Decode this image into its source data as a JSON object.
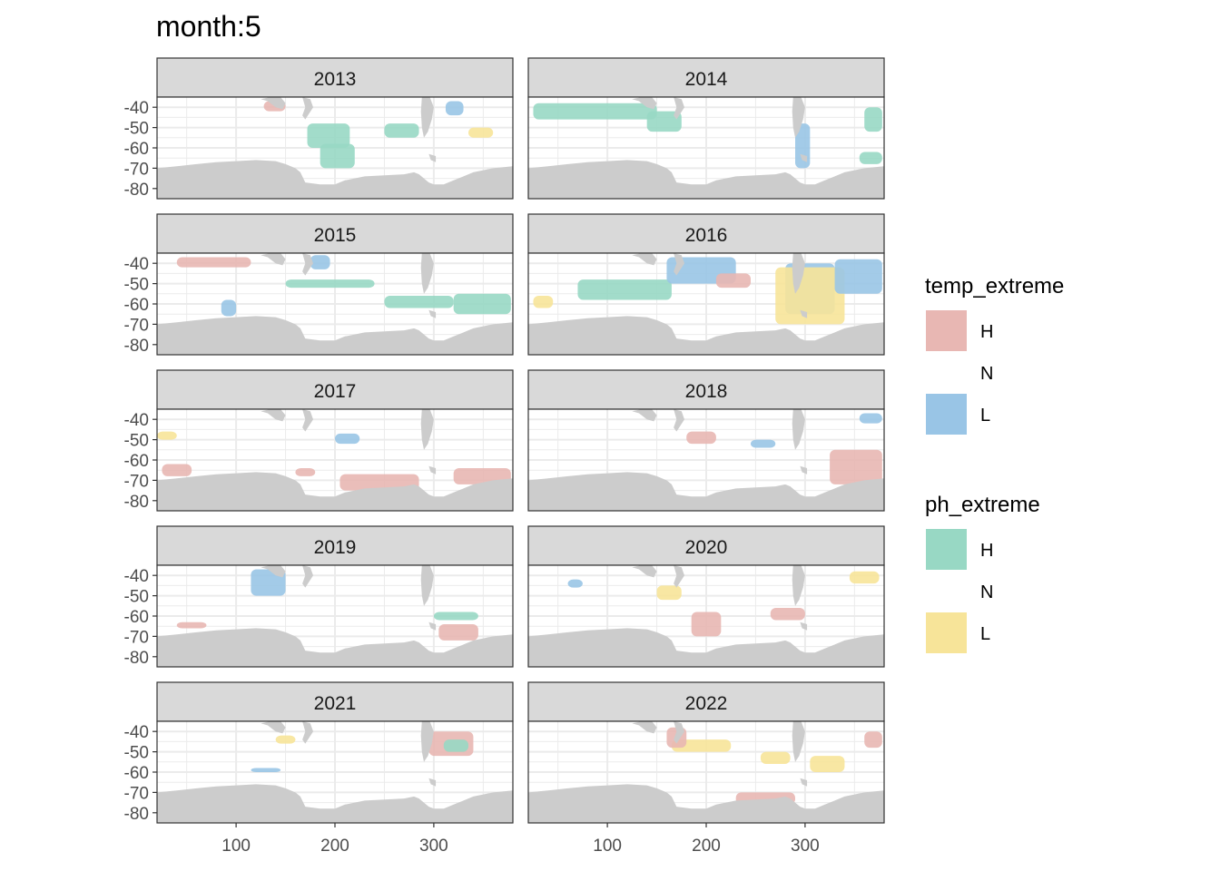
{
  "plot_title": "month:5",
  "chart_data": {
    "type": "heatmap",
    "title": "month:5",
    "facet_variable": "year",
    "facets": [
      "2013",
      "2014",
      "2015",
      "2016",
      "2017",
      "2018",
      "2019",
      "2020",
      "2021",
      "2022"
    ],
    "facet_layout": {
      "ncol": 2,
      "nrow": 5
    },
    "xlim": [
      20,
      380
    ],
    "ylim": [
      -85,
      -35
    ],
    "x_ticks": [
      100,
      200,
      300
    ],
    "x_tick_labels": [
      "100",
      "200",
      "300"
    ],
    "y_ticks": [
      -40,
      -50,
      -60,
      -70,
      -80
    ],
    "y_tick_labels": [
      "-40",
      "-50",
      "-60",
      "-70",
      "-80"
    ],
    "xlabel": "",
    "ylabel": "",
    "grid": true,
    "legend_position": "right",
    "legends": [
      {
        "title": "temp_extreme",
        "entries": [
          {
            "label": "H",
            "color": "#e8b7b3"
          },
          {
            "label": "N",
            "color": ""
          },
          {
            "label": "L",
            "color": "#99c5e6"
          }
        ]
      },
      {
        "title": "ph_extreme",
        "entries": [
          {
            "label": "H",
            "color": "#98d8c4"
          },
          {
            "label": "N",
            "color": ""
          },
          {
            "label": "L",
            "color": "#f7e499"
          }
        ]
      }
    ],
    "land_color": "#cccccc",
    "strip_fill": "#d9d9d9",
    "regions": {
      "2013": [
        {
          "var": "ph",
          "level": "H",
          "lon": [
            172,
            215
          ],
          "lat": [
            -60,
            -48
          ]
        },
        {
          "var": "ph",
          "level": "H",
          "lon": [
            185,
            220
          ],
          "lat": [
            -70,
            -58
          ]
        },
        {
          "var": "ph",
          "level": "L",
          "lon": [
            335,
            360
          ],
          "lat": [
            -55,
            -50
          ]
        },
        {
          "var": "temp",
          "level": "L",
          "lon": [
            312,
            330
          ],
          "lat": [
            -44,
            -37
          ]
        },
        {
          "var": "temp",
          "level": "H",
          "lon": [
            128,
            150
          ],
          "lat": [
            -42,
            -37
          ]
        },
        {
          "var": "ph",
          "level": "H",
          "lon": [
            250,
            285
          ],
          "lat": [
            -55,
            -48
          ]
        }
      ],
      "2014": [
        {
          "var": "ph",
          "level": "H",
          "lon": [
            25,
            150
          ],
          "lat": [
            -46,
            -38
          ]
        },
        {
          "var": "ph",
          "level": "H",
          "lon": [
            140,
            175
          ],
          "lat": [
            -52,
            -42
          ]
        },
        {
          "var": "temp",
          "level": "L",
          "lon": [
            290,
            305
          ],
          "lat": [
            -70,
            -48
          ]
        },
        {
          "var": "ph",
          "level": "H",
          "lon": [
            355,
            378
          ],
          "lat": [
            -68,
            -62
          ]
        },
        {
          "var": "ph",
          "level": "H",
          "lon": [
            360,
            378
          ],
          "lat": [
            -52,
            -40
          ]
        }
      ],
      "2015": [
        {
          "var": "temp",
          "level": "L",
          "lon": [
            175,
            195
          ],
          "lat": [
            -43,
            -36
          ]
        },
        {
          "var": "ph",
          "level": "H",
          "lon": [
            150,
            240
          ],
          "lat": [
            -52,
            -48
          ]
        },
        {
          "var": "ph",
          "level": "H",
          "lon": [
            320,
            378
          ],
          "lat": [
            -65,
            -55
          ]
        },
        {
          "var": "temp",
          "level": "L",
          "lon": [
            85,
            100
          ],
          "lat": [
            -66,
            -58
          ]
        },
        {
          "var": "temp",
          "level": "H",
          "lon": [
            40,
            115
          ],
          "lat": [
            -42,
            -37
          ]
        },
        {
          "var": "ph",
          "level": "H",
          "lon": [
            250,
            320
          ],
          "lat": [
            -62,
            -56
          ]
        }
      ],
      "2016": [
        {
          "var": "ph",
          "level": "H",
          "lon": [
            70,
            165
          ],
          "lat": [
            -58,
            -48
          ]
        },
        {
          "var": "temp",
          "level": "L",
          "lon": [
            160,
            230
          ],
          "lat": [
            -50,
            -37
          ]
        },
        {
          "var": "temp",
          "level": "L",
          "lon": [
            280,
            330
          ],
          "lat": [
            -65,
            -40
          ]
        },
        {
          "var": "ph",
          "level": "L",
          "lon": [
            270,
            340
          ],
          "lat": [
            -70,
            -42
          ]
        },
        {
          "var": "temp",
          "level": "H",
          "lon": [
            210,
            245
          ],
          "lat": [
            -52,
            -45
          ]
        },
        {
          "var": "ph",
          "level": "L",
          "lon": [
            25,
            45
          ],
          "lat": [
            -62,
            -56
          ]
        },
        {
          "var": "temp",
          "level": "L",
          "lon": [
            330,
            378
          ],
          "lat": [
            -55,
            -38
          ]
        }
      ],
      "2017": [
        {
          "var": "temp",
          "level": "H",
          "lon": [
            205,
            285
          ],
          "lat": [
            -75,
            -67
          ]
        },
        {
          "var": "temp",
          "level": "H",
          "lon": [
            320,
            378
          ],
          "lat": [
            -72,
            -64
          ]
        },
        {
          "var": "temp",
          "level": "H",
          "lon": [
            25,
            55
          ],
          "lat": [
            -68,
            -62
          ]
        },
        {
          "var": "temp",
          "level": "H",
          "lon": [
            160,
            180
          ],
          "lat": [
            -68,
            -64
          ]
        },
        {
          "var": "temp",
          "level": "L",
          "lon": [
            200,
            225
          ],
          "lat": [
            -52,
            -47
          ]
        },
        {
          "var": "ph",
          "level": "L",
          "lon": [
            20,
            40
          ],
          "lat": [
            -50,
            -46
          ]
        }
      ],
      "2018": [
        {
          "var": "temp",
          "level": "H",
          "lon": [
            325,
            378
          ],
          "lat": [
            -72,
            -55
          ]
        },
        {
          "var": "temp",
          "level": "L",
          "lon": [
            245,
            270
          ],
          "lat": [
            -54,
            -50
          ]
        },
        {
          "var": "temp",
          "level": "H",
          "lon": [
            180,
            210
          ],
          "lat": [
            -52,
            -46
          ]
        },
        {
          "var": "temp",
          "level": "L",
          "lon": [
            355,
            378
          ],
          "lat": [
            -42,
            -37
          ]
        }
      ],
      "2019": [
        {
          "var": "temp",
          "level": "H",
          "lon": [
            305,
            345
          ],
          "lat": [
            -72,
            -64
          ]
        },
        {
          "var": "temp",
          "level": "L",
          "lon": [
            115,
            150
          ],
          "lat": [
            -50,
            -37
          ]
        },
        {
          "var": "temp",
          "level": "H",
          "lon": [
            40,
            70
          ],
          "lat": [
            -66,
            -63
          ]
        },
        {
          "var": "ph",
          "level": "H",
          "lon": [
            300,
            345
          ],
          "lat": [
            -62,
            -58
          ]
        }
      ],
      "2020": [
        {
          "var": "temp",
          "level": "H",
          "lon": [
            265,
            300
          ],
          "lat": [
            -62,
            -56
          ]
        },
        {
          "var": "ph",
          "level": "L",
          "lon": [
            150,
            175
          ],
          "lat": [
            -52,
            -45
          ]
        },
        {
          "var": "ph",
          "level": "L",
          "lon": [
            345,
            375
          ],
          "lat": [
            -44,
            -38
          ]
        },
        {
          "var": "temp",
          "level": "H",
          "lon": [
            185,
            215
          ],
          "lat": [
            -70,
            -58
          ]
        },
        {
          "var": "temp",
          "level": "L",
          "lon": [
            60,
            75
          ],
          "lat": [
            -46,
            -42
          ]
        }
      ],
      "2021": [
        {
          "var": "temp",
          "level": "H",
          "lon": [
            295,
            340
          ],
          "lat": [
            -52,
            -40
          ]
        },
        {
          "var": "ph",
          "level": "H",
          "lon": [
            310,
            335
          ],
          "lat": [
            -50,
            -44
          ]
        },
        {
          "var": "temp",
          "level": "L",
          "lon": [
            115,
            145
          ],
          "lat": [
            -60,
            -58
          ]
        },
        {
          "var": "ph",
          "level": "L",
          "lon": [
            140,
            160
          ],
          "lat": [
            -46,
            -42
          ]
        }
      ],
      "2022": [
        {
          "var": "ph",
          "level": "L",
          "lon": [
            165,
            225
          ],
          "lat": [
            -50,
            -44
          ]
        },
        {
          "var": "temp",
          "level": "H",
          "lon": [
            160,
            180
          ],
          "lat": [
            -48,
            -38
          ]
        },
        {
          "var": "ph",
          "level": "L",
          "lon": [
            255,
            285
          ],
          "lat": [
            -56,
            -50
          ]
        },
        {
          "var": "ph",
          "level": "L",
          "lon": [
            305,
            340
          ],
          "lat": [
            -60,
            -52
          ]
        },
        {
          "var": "temp",
          "level": "H",
          "lon": [
            230,
            290
          ],
          "lat": [
            -76,
            -70
          ]
        },
        {
          "var": "temp",
          "level": "H",
          "lon": [
            360,
            378
          ],
          "lat": [
            -48,
            -40
          ]
        }
      ]
    }
  }
}
